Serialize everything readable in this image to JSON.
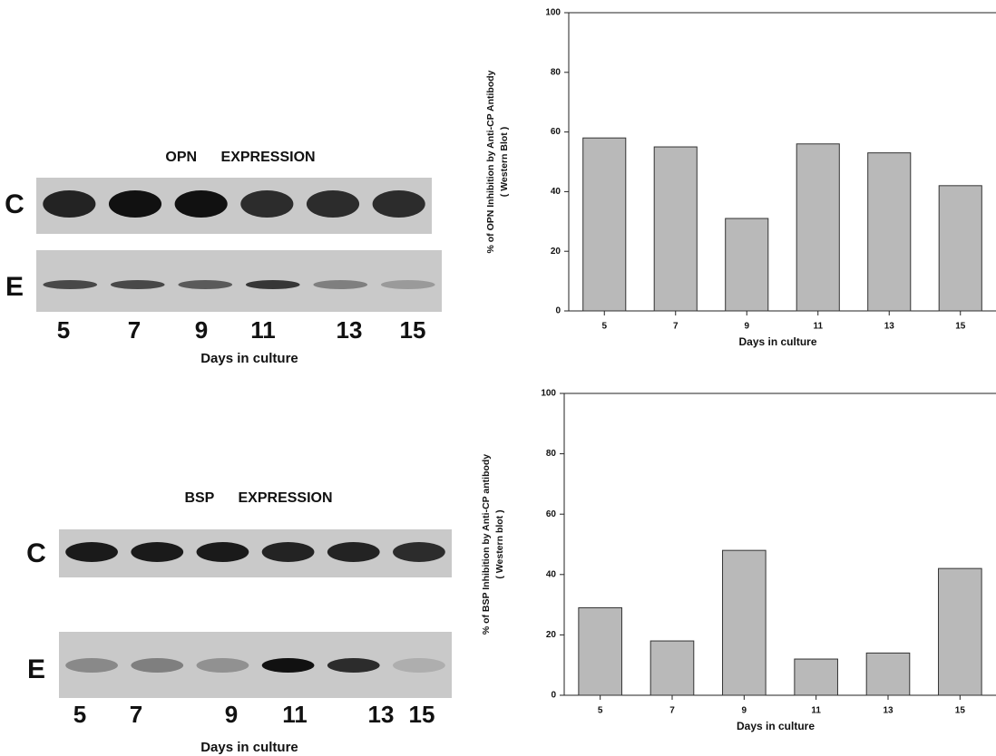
{
  "chart_data": [
    {
      "type": "bar",
      "ylabel": "% of OPN Inhibition by Anti-CP Antibody",
      "ylabel_note": "( Western Blot )",
      "xlabel": "Days in culture",
      "categories": [
        "5",
        "7",
        "9",
        "11",
        "13",
        "15"
      ],
      "values": [
        58,
        55,
        31,
        56,
        53,
        42
      ],
      "color": "#b9b9b9",
      "ylim": [
        0,
        100
      ],
      "yticks": [
        0,
        20,
        40,
        60,
        80,
        100
      ]
    },
    {
      "type": "bar",
      "ylabel": "% of BSP Inhibition by Anti-CP antibody",
      "ylabel_note": "( Western blot )",
      "xlabel": "Days in culture",
      "categories": [
        "5",
        "7",
        "9",
        "11",
        "13",
        "15"
      ],
      "values": [
        29,
        18,
        48,
        12,
        14,
        42
      ],
      "color": "#b9b9b9",
      "ylim": [
        0,
        100
      ],
      "yticks": [
        0,
        20,
        40,
        60,
        80,
        100
      ]
    }
  ],
  "blots": [
    {
      "title": "OPN EXPRESSION",
      "rows": [
        "C",
        "E"
      ],
      "lanes": [
        "5",
        "7",
        "9",
        "11",
        "13",
        "15"
      ],
      "xlabel": "Days in culture"
    },
    {
      "title": "BSP EXPRESSION",
      "rows": [
        "C",
        "E"
      ],
      "lanes": [
        "5",
        "7",
        "9",
        "11",
        "13",
        "15"
      ],
      "xlabel": "Days in culture"
    }
  ]
}
